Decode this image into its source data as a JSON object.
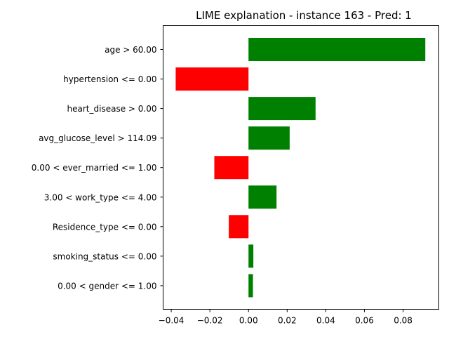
{
  "chart_data": {
    "type": "bar",
    "orientation": "horizontal",
    "title": "LIME explanation - instance 163 - Pred: 1",
    "xlabel": "",
    "ylabel": "",
    "categories": [
      "age > 60.00",
      "hypertension <= 0.00",
      "heart_disease > 0.00",
      "avg_glucose_level > 114.09",
      "0.00 < ever_married <= 1.00",
      "3.00 < work_type <= 4.00",
      "Residence_type <= 0.00",
      "smoking_status <= 0.00",
      "0.00 < gender <= 1.00"
    ],
    "values": [
      0.0915,
      -0.0377,
      0.0347,
      0.0213,
      -0.0177,
      0.0145,
      -0.0102,
      0.0025,
      0.0023
    ],
    "xlim": [
      -0.0442,
      0.0985
    ],
    "xticks": [
      -0.04,
      -0.02,
      0.0,
      0.02,
      0.04,
      0.06,
      0.08
    ],
    "xtick_labels": [
      "−0.04",
      "−0.02",
      "0.00",
      "0.02",
      "0.04",
      "0.06",
      "0.08"
    ],
    "colors": {
      "positive": "#008000",
      "negative": "#ff0000"
    },
    "grid": false,
    "legend": "none"
  }
}
